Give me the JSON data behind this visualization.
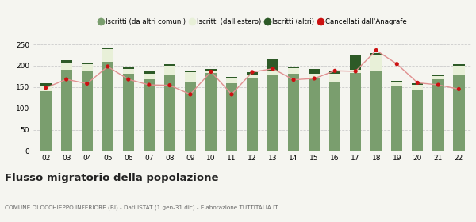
{
  "years": [
    "02",
    "03",
    "04",
    "05",
    "06",
    "07",
    "08",
    "09",
    "10",
    "11",
    "12",
    "13",
    "14",
    "15",
    "16",
    "17",
    "18",
    "19",
    "20",
    "21",
    "22"
  ],
  "iscritti_comuni": [
    140,
    190,
    188,
    210,
    182,
    168,
    178,
    162,
    183,
    158,
    170,
    178,
    182,
    170,
    163,
    183,
    188,
    152,
    143,
    168,
    180
  ],
  "iscritti_estero": [
    14,
    18,
    15,
    28,
    10,
    14,
    22,
    22,
    5,
    12,
    10,
    8,
    12,
    12,
    18,
    8,
    38,
    8,
    12,
    8,
    20
  ],
  "iscritti_altri": [
    4,
    4,
    5,
    2,
    4,
    4,
    4,
    4,
    4,
    4,
    4,
    30,
    4,
    10,
    6,
    35,
    4,
    4,
    4,
    4,
    4
  ],
  "cancellati": [
    148,
    168,
    158,
    198,
    168,
    155,
    154,
    133,
    186,
    133,
    185,
    193,
    167,
    170,
    188,
    187,
    236,
    204,
    160,
    155,
    145
  ],
  "color_comuni": "#7a9e6e",
  "color_estero": "#e8f0d8",
  "color_altri": "#2d5a27",
  "color_cancellati": "#cc1111",
  "color_line": "#e09090",
  "bg_color": "#f5f5f0",
  "grid_color": "#cccccc",
  "title": "Flusso migratorio della popolazione",
  "subtitle": "COMUNE DI OCCHIEPPO INFERIORE (BI) - Dati ISTAT (1 gen-31 dic) - Elaborazione TUTTITALIA.IT",
  "legend_labels": [
    "Iscritti (da altri comuni)",
    "Iscritti (dall'estero)",
    "Iscritti (altri)",
    "Cancellati dall'Anagrafe"
  ],
  "ylim": [
    0,
    250
  ],
  "yticks": [
    0,
    50,
    100,
    150,
    200,
    250
  ]
}
